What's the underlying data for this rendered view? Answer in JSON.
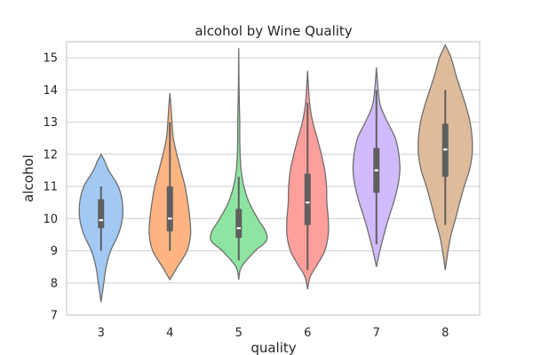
{
  "chart_data": {
    "type": "violin",
    "title": "alcohol by Wine Quality",
    "xlabel": "quality",
    "ylabel": "alcohol",
    "ylim": [
      7,
      15.5
    ],
    "yticks": [
      7,
      8,
      9,
      10,
      11,
      12,
      13,
      14,
      15
    ],
    "grid": true,
    "categories": [
      "3",
      "4",
      "5",
      "6",
      "7",
      "8"
    ],
    "colors": [
      "#a1c9f4",
      "#ffb482",
      "#8de5a1",
      "#ff9f9b",
      "#d0bbff",
      "#debb9b"
    ],
    "violins": [
      {
        "category": "3",
        "box": {
          "min": 9.0,
          "q1": 9.7,
          "median": 9.95,
          "q3": 10.6,
          "max": 11.0
        },
        "density": [
          [
            7.4,
            0.0
          ],
          [
            7.7,
            0.04
          ],
          [
            8.0,
            0.08
          ],
          [
            8.5,
            0.15
          ],
          [
            9.0,
            0.28
          ],
          [
            9.5,
            0.5
          ],
          [
            10.0,
            0.62
          ],
          [
            10.5,
            0.62
          ],
          [
            11.0,
            0.5
          ],
          [
            11.5,
            0.22
          ],
          [
            11.8,
            0.1
          ],
          [
            12.0,
            0.0
          ]
        ]
      },
      {
        "category": "4",
        "box": {
          "min": 9.0,
          "q1": 9.6,
          "median": 10.0,
          "q3": 11.0,
          "max": 13.0
        },
        "density": [
          [
            8.1,
            0.0
          ],
          [
            8.5,
            0.22
          ],
          [
            9.0,
            0.5
          ],
          [
            9.5,
            0.6
          ],
          [
            10.0,
            0.58
          ],
          [
            10.5,
            0.52
          ],
          [
            11.0,
            0.44
          ],
          [
            11.5,
            0.32
          ],
          [
            12.0,
            0.2
          ],
          [
            12.5,
            0.1
          ],
          [
            13.0,
            0.06
          ],
          [
            13.5,
            0.03
          ],
          [
            13.9,
            0.0
          ]
        ]
      },
      {
        "category": "5",
        "box": {
          "min": 8.7,
          "q1": 9.4,
          "median": 9.7,
          "q3": 10.3,
          "max": 11.3
        },
        "density": [
          [
            8.1,
            0.0
          ],
          [
            8.5,
            0.08
          ],
          [
            9.0,
            0.48
          ],
          [
            9.3,
            0.8
          ],
          [
            9.6,
            0.78
          ],
          [
            10.0,
            0.55
          ],
          [
            10.5,
            0.3
          ],
          [
            11.0,
            0.15
          ],
          [
            11.5,
            0.07
          ],
          [
            12.0,
            0.04
          ],
          [
            12.5,
            0.03
          ],
          [
            13.0,
            0.03
          ],
          [
            14.0,
            0.01
          ],
          [
            15.3,
            0.0
          ]
        ]
      },
      {
        "category": "6",
        "box": {
          "min": 8.4,
          "q1": 9.8,
          "median": 10.5,
          "q3": 11.4,
          "max": 13.6
        },
        "density": [
          [
            7.8,
            0.0
          ],
          [
            8.2,
            0.08
          ],
          [
            8.6,
            0.3
          ],
          [
            9.0,
            0.5
          ],
          [
            9.5,
            0.6
          ],
          [
            10.0,
            0.6
          ],
          [
            10.5,
            0.56
          ],
          [
            11.0,
            0.55
          ],
          [
            11.5,
            0.5
          ],
          [
            12.0,
            0.4
          ],
          [
            12.5,
            0.28
          ],
          [
            13.0,
            0.15
          ],
          [
            13.5,
            0.07
          ],
          [
            14.0,
            0.03
          ],
          [
            14.6,
            0.0
          ]
        ]
      },
      {
        "category": "7",
        "box": {
          "min": 9.2,
          "q1": 10.8,
          "median": 11.5,
          "q3": 12.2,
          "max": 14.0
        },
        "density": [
          [
            8.5,
            0.0
          ],
          [
            9.0,
            0.1
          ],
          [
            9.5,
            0.22
          ],
          [
            10.0,
            0.35
          ],
          [
            10.5,
            0.5
          ],
          [
            11.0,
            0.62
          ],
          [
            11.5,
            0.68
          ],
          [
            12.0,
            0.65
          ],
          [
            12.5,
            0.55
          ],
          [
            13.0,
            0.32
          ],
          [
            13.5,
            0.12
          ],
          [
            14.0,
            0.05
          ],
          [
            14.7,
            0.0
          ]
        ]
      },
      {
        "category": "8",
        "box": {
          "min": 9.8,
          "q1": 11.3,
          "median": 12.15,
          "q3": 12.95,
          "max": 14.0
        },
        "density": [
          [
            8.4,
            0.0
          ],
          [
            9.0,
            0.08
          ],
          [
            9.5,
            0.17
          ],
          [
            10.0,
            0.3
          ],
          [
            10.5,
            0.42
          ],
          [
            11.0,
            0.55
          ],
          [
            11.5,
            0.7
          ],
          [
            12.0,
            0.78
          ],
          [
            12.5,
            0.78
          ],
          [
            13.0,
            0.72
          ],
          [
            13.5,
            0.6
          ],
          [
            14.0,
            0.45
          ],
          [
            14.5,
            0.3
          ],
          [
            15.0,
            0.17
          ],
          [
            15.4,
            0.0
          ]
        ]
      }
    ]
  }
}
